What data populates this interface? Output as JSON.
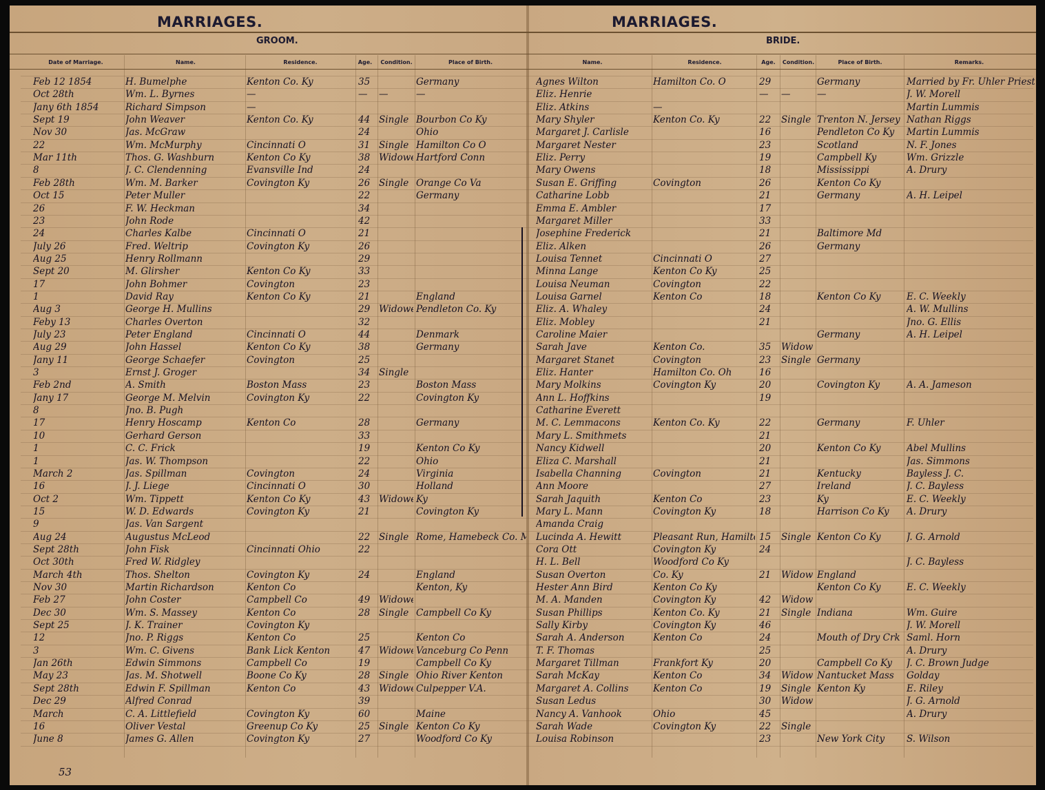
{
  "left_page": {
    "title": "MARRIAGES.",
    "section": "GROOM.",
    "columns": [
      "Date of Marriage.",
      "Name.",
      "Residence.",
      "Age.",
      "Condition.",
      "Place of Birth."
    ]
  },
  "right_page": {
    "title": "MARRIAGES.",
    "section": "BRIDE.",
    "columns": [
      "Name.",
      "Residence.",
      "Age.",
      "Condition.",
      "Place of Birth.",
      "Remarks."
    ]
  },
  "page_number": "53",
  "rows": [
    {
      "date": "Feb 12 1854",
      "groom": "H. Bumelphe",
      "g_res": "Kenton Co. Ky",
      "g_age": "35",
      "g_cond": "",
      "g_birth": "Germany",
      "bride": "Agnes Wilton",
      "b_res": "Hamilton Co. O",
      "b_age": "29",
      "b_cond": "",
      "b_birth": "Germany",
      "remarks": "Married by Fr. Uhler Priest"
    },
    {
      "date": "Oct 28th",
      "groom": "Wm. L. Byrnes",
      "g_res": "—",
      "g_age": "—",
      "g_cond": "—",
      "g_birth": "—",
      "bride": "Eliz. Henrie",
      "b_res": "",
      "b_age": "—",
      "b_cond": "—",
      "b_birth": "—",
      "remarks": "J. W. Morell"
    },
    {
      "date": "Jany 6th 1854",
      "groom": "Richard Simpson",
      "g_res": "—",
      "g_age": "",
      "g_cond": "",
      "g_birth": "",
      "bride": "Eliz. Atkins",
      "b_res": "—",
      "b_age": "",
      "b_cond": "",
      "b_birth": "",
      "remarks": "Martin Lummis"
    },
    {
      "date": "Sept 19",
      "groom": "John Weaver",
      "g_res": "Kenton Co. Ky",
      "g_age": "44",
      "g_cond": "Single",
      "g_birth": "Bourbon Co Ky",
      "bride": "Mary Shyler",
      "b_res": "Kenton Co. Ky",
      "b_age": "22",
      "b_cond": "Single",
      "b_birth": "Trenton N. Jersey",
      "remarks": "Nathan Riggs"
    },
    {
      "date": "Nov 30",
      "groom": "Jas. McGraw",
      "g_res": "",
      "g_age": "24",
      "g_cond": "",
      "g_birth": "Ohio",
      "bride": "Margaret J. Carlisle",
      "b_res": "",
      "b_age": "16",
      "b_cond": "",
      "b_birth": "Pendleton Co Ky",
      "remarks": "Martin Lummis"
    },
    {
      "date": "22",
      "groom": "Wm. McMurphy",
      "g_res": "Cincinnati O",
      "g_age": "31",
      "g_cond": "Single",
      "g_birth": "Hamilton Co O",
      "bride": "Margaret Nester",
      "b_res": "",
      "b_age": "23",
      "b_cond": "",
      "b_birth": "Scotland",
      "remarks": "N. F. Jones"
    },
    {
      "date": "Mar 11th",
      "groom": "Thos. G. Washburn",
      "g_res": "Kenton Co Ky",
      "g_age": "38",
      "g_cond": "Widower",
      "g_birth": "Hartford Conn",
      "bride": "Eliz. Perry",
      "b_res": "",
      "b_age": "19",
      "b_cond": "",
      "b_birth": "Campbell Ky",
      "remarks": "Wm. Grizzle"
    },
    {
      "date": "8",
      "groom": "J. C. Clendenning",
      "g_res": "Evansville Ind",
      "g_age": "24",
      "g_cond": "",
      "g_birth": "",
      "bride": "Mary Owens",
      "b_res": "",
      "b_age": "18",
      "b_cond": "",
      "b_birth": "Mississippi",
      "remarks": "A. Drury"
    },
    {
      "date": "Feb 28th",
      "groom": "Wm. M. Barker",
      "g_res": "Covington Ky",
      "g_age": "26",
      "g_cond": "Single",
      "g_birth": "Orange Co Va",
      "bride": "Susan E. Griffing",
      "b_res": "Covington",
      "b_age": "26",
      "b_cond": "",
      "b_birth": "Kenton Co Ky",
      "remarks": ""
    },
    {
      "date": "Oct 15",
      "groom": "Peter Muller",
      "g_res": "",
      "g_age": "22",
      "g_cond": "",
      "g_birth": "Germany",
      "bride": "Catharine Lobb",
      "b_res": "",
      "b_age": "21",
      "b_cond": "",
      "b_birth": "Germany",
      "remarks": "A. H. Leipel"
    },
    {
      "date": "26",
      "groom": "F. W. Heckman",
      "g_res": "",
      "g_age": "34",
      "g_cond": "",
      "g_birth": "",
      "bride": "Emma E. Ambler",
      "b_res": "",
      "b_age": "17",
      "b_cond": "",
      "b_birth": "",
      "remarks": ""
    },
    {
      "date": "23",
      "groom": "John Rode",
      "g_res": "",
      "g_age": "42",
      "g_cond": "",
      "g_birth": "",
      "bride": "Margaret Miller",
      "b_res": "",
      "b_age": "33",
      "b_cond": "",
      "b_birth": "",
      "remarks": ""
    },
    {
      "date": "24",
      "groom": "Charles Kalbe",
      "g_res": "Cincinnati O",
      "g_age": "21",
      "g_cond": "",
      "g_birth": "",
      "bride": "Josephine Frederick",
      "b_res": "",
      "b_age": "21",
      "b_cond": "",
      "b_birth": "Baltimore Md",
      "remarks": ""
    },
    {
      "date": "July 26",
      "groom": "Fred. Weltrip",
      "g_res": "Covington Ky",
      "g_age": "26",
      "g_cond": "",
      "g_birth": "",
      "bride": "Eliz. Alken",
      "b_res": "",
      "b_age": "26",
      "b_cond": "",
      "b_birth": "Germany",
      "remarks": ""
    },
    {
      "date": "Aug 25",
      "groom": "Henry Rollmann",
      "g_res": "",
      "g_age": "29",
      "g_cond": "",
      "g_birth": "",
      "bride": "Louisa Tennet",
      "b_res": "Cincinnati O",
      "b_age": "27",
      "b_cond": "",
      "b_birth": "",
      "remarks": ""
    },
    {
      "date": "Sept 20",
      "groom": "M. Glirsher",
      "g_res": "Kenton Co Ky",
      "g_age": "33",
      "g_cond": "",
      "g_birth": "",
      "bride": "Minna Lange",
      "b_res": "Kenton Co Ky",
      "b_age": "25",
      "b_cond": "",
      "b_birth": "",
      "remarks": ""
    },
    {
      "date": "17",
      "groom": "John Bohmer",
      "g_res": "Covington",
      "g_age": "23",
      "g_cond": "",
      "g_birth": "",
      "bride": "Louisa Neuman",
      "b_res": "Covington",
      "b_age": "22",
      "b_cond": "",
      "b_birth": "",
      "remarks": ""
    },
    {
      "date": "1",
      "groom": "David Ray",
      "g_res": "Kenton Co Ky",
      "g_age": "21",
      "g_cond": "",
      "g_birth": "England",
      "bride": "Louisa Garnel",
      "b_res": "Kenton Co",
      "b_age": "18",
      "b_cond": "",
      "b_birth": "Kenton Co Ky",
      "remarks": "E. C. Weekly"
    },
    {
      "date": "Aug 3",
      "groom": "George H. Mullins",
      "g_res": "",
      "g_age": "29",
      "g_cond": "Widower",
      "g_birth": "Pendleton Co. Ky",
      "bride": "Eliz. A. Whaley",
      "b_res": "",
      "b_age": "24",
      "b_cond": "",
      "b_birth": "",
      "remarks": "A. W. Mullins"
    },
    {
      "date": "Feby 13",
      "groom": "Charles Overton",
      "g_res": "",
      "g_age": "32",
      "g_cond": "",
      "g_birth": "",
      "bride": "Eliz. Mobley",
      "b_res": "",
      "b_age": "21",
      "b_cond": "",
      "b_birth": "",
      "remarks": "Jno. G. Ellis"
    },
    {
      "date": "July 23",
      "groom": "Peter England",
      "g_res": "Cincinnati O",
      "g_age": "44",
      "g_cond": "",
      "g_birth": "Denmark",
      "bride": "Caroline Maier",
      "b_res": "",
      "b_age": "",
      "b_cond": "",
      "b_birth": "Germany",
      "remarks": "A. H. Leipel"
    },
    {
      "date": "Aug 29",
      "groom": "John Hassel",
      "g_res": "Kenton Co Ky",
      "g_age": "38",
      "g_cond": "",
      "g_birth": "Germany",
      "bride": "Sarah Jave",
      "b_res": "Kenton Co.",
      "b_age": "35",
      "b_cond": "Widow",
      "b_birth": "",
      "remarks": ""
    },
    {
      "date": "Jany 11",
      "groom": "George Schaefer",
      "g_res": "Covington",
      "g_age": "25",
      "g_cond": "",
      "g_birth": "",
      "bride": "Margaret Stanet",
      "b_res": "Covington",
      "b_age": "23",
      "b_cond": "Single",
      "b_birth": "Germany",
      "remarks": ""
    },
    {
      "date": "3",
      "groom": "Ernst J. Groger",
      "g_res": "",
      "g_age": "34",
      "g_cond": "Single",
      "g_birth": "",
      "bride": "Eliz. Hanter",
      "b_res": "Hamilton Co. Oh",
      "b_age": "16",
      "b_cond": "",
      "b_birth": "",
      "remarks": ""
    },
    {
      "date": "Feb 2nd",
      "groom": "A. Smith",
      "g_res": "Boston Mass",
      "g_age": "23",
      "g_cond": "",
      "g_birth": "Boston Mass",
      "bride": "Mary Molkins",
      "b_res": "Covington Ky",
      "b_age": "20",
      "b_cond": "",
      "b_birth": "Covington Ky",
      "remarks": "A. A. Jameson"
    },
    {
      "date": "Jany 17",
      "groom": "George M. Melvin",
      "g_res": "Covington Ky",
      "g_age": "22",
      "g_cond": "",
      "g_birth": "Covington Ky",
      "bride": "Ann L. Hoffkins",
      "b_res": "",
      "b_age": "19",
      "b_cond": "",
      "b_birth": "",
      "remarks": ""
    },
    {
      "date": "8",
      "groom": "Jno. B. Pugh",
      "g_res": "",
      "g_age": "",
      "g_cond": "",
      "g_birth": "",
      "bride": "Catharine Everett",
      "b_res": "",
      "b_age": "",
      "b_cond": "",
      "b_birth": "",
      "remarks": ""
    },
    {
      "date": "17",
      "groom": "Henry Hoscamp",
      "g_res": "Kenton Co",
      "g_age": "28",
      "g_cond": "",
      "g_birth": "Germany",
      "bride": "M. C. Lemmacons",
      "b_res": "Kenton Co. Ky",
      "b_age": "22",
      "b_cond": "",
      "b_birth": "Germany",
      "remarks": "F. Uhler"
    },
    {
      "date": "10",
      "groom": "Gerhard Gerson",
      "g_res": "",
      "g_age": "33",
      "g_cond": "",
      "g_birth": "",
      "bride": "Mary L. Smithmets",
      "b_res": "",
      "b_age": "21",
      "b_cond": "",
      "b_birth": "",
      "remarks": ""
    },
    {
      "date": "1",
      "groom": "C. C. Frick",
      "g_res": "",
      "g_age": "19",
      "g_cond": "",
      "g_birth": "Kenton Co Ky",
      "bride": "Nancy Kidwell",
      "b_res": "",
      "b_age": "20",
      "b_cond": "",
      "b_birth": "Kenton Co Ky",
      "remarks": "Abel Mullins"
    },
    {
      "date": "1",
      "groom": "Jas. W. Thompson",
      "g_res": "",
      "g_age": "22",
      "g_cond": "",
      "g_birth": "Ohio",
      "bride": "Eliza C. Marshall",
      "b_res": "",
      "b_age": "21",
      "b_cond": "",
      "b_birth": "",
      "remarks": "Jas. Simmons"
    },
    {
      "date": "March 2",
      "groom": "Jas. Spillman",
      "g_res": "Covington",
      "g_age": "24",
      "g_cond": "",
      "g_birth": "Virginia",
      "bride": "Isabella Channing",
      "b_res": "Covington",
      "b_age": "21",
      "b_cond": "",
      "b_birth": "Kentucky",
      "remarks": "Bayless J. C."
    },
    {
      "date": "16",
      "groom": "J. J. Liege",
      "g_res": "Cincinnati O",
      "g_age": "30",
      "g_cond": "",
      "g_birth": "Holland",
      "bride": "Ann Moore",
      "b_res": "",
      "b_age": "27",
      "b_cond": "",
      "b_birth": "Ireland",
      "remarks": "J. C. Bayless"
    },
    {
      "date": "Oct 2",
      "groom": "Wm. Tippett",
      "g_res": "Kenton Co Ky",
      "g_age": "43",
      "g_cond": "Widower",
      "g_birth": "Ky",
      "bride": "Sarah Jaquith",
      "b_res": "Kenton Co",
      "b_age": "23",
      "b_cond": "",
      "b_birth": "Ky",
      "remarks": "E. C. Weekly"
    },
    {
      "date": "15",
      "groom": "W. D. Edwards",
      "g_res": "Covington Ky",
      "g_age": "21",
      "g_cond": "",
      "g_birth": "Covington Ky",
      "bride": "Mary L. Mann",
      "b_res": "Covington Ky",
      "b_age": "18",
      "b_cond": "",
      "b_birth": "Harrison Co Ky",
      "remarks": "A. Drury"
    },
    {
      "date": "9",
      "groom": "Jas. Van Sargent",
      "g_res": "",
      "g_age": "",
      "g_cond": "",
      "g_birth": "",
      "bride": "Amanda Craig",
      "b_res": "",
      "b_age": "",
      "b_cond": "",
      "b_birth": "",
      "remarks": ""
    },
    {
      "date": "Aug 24",
      "groom": "Augustus McLeod",
      "g_res": "",
      "g_age": "22",
      "g_cond": "Single",
      "g_birth": "Rome, Hamebeck Co. Mass",
      "bride": "Lucinda A. Hewitt",
      "b_res": "Pleasant Run, Hamilton Co",
      "b_age": "15",
      "b_cond": "Single",
      "b_birth": "Kenton Co Ky",
      "remarks": "J. G. Arnold"
    },
    {
      "date": "Sept 28th",
      "groom": "John Fisk",
      "g_res": "Cincinnati Ohio",
      "g_age": "22",
      "g_cond": "",
      "g_birth": "",
      "bride": "Cora Ott",
      "b_res": "Covington Ky",
      "b_age": "24",
      "b_cond": "",
      "b_birth": "",
      "remarks": ""
    },
    {
      "date": "Oct 30th",
      "groom": "Fred W. Ridgley",
      "g_res": "",
      "g_age": "",
      "g_cond": "",
      "g_birth": "",
      "bride": "H. L. Bell",
      "b_res": "Woodford Co Ky",
      "b_age": "",
      "b_cond": "",
      "b_birth": "",
      "remarks": "J. C. Bayless"
    },
    {
      "date": "March 4th",
      "groom": "Thos. Shelton",
      "g_res": "Covington Ky",
      "g_age": "24",
      "g_cond": "",
      "g_birth": "England",
      "bride": "Susan Overton",
      "b_res": "Co. Ky",
      "b_age": "21",
      "b_cond": "Widow",
      "b_birth": "England",
      "remarks": ""
    },
    {
      "date": "Nov 30",
      "groom": "Martin Richardson",
      "g_res": "Kenton Co",
      "g_age": "",
      "g_cond": "",
      "g_birth": "Kenton, Ky",
      "bride": "Hester Ann Bird",
      "b_res": "Kenton Co Ky",
      "b_age": "",
      "b_cond": "",
      "b_birth": "Kenton Co Ky",
      "remarks": "E. C. Weekly"
    },
    {
      "date": "Feb 27",
      "groom": "John Coster",
      "g_res": "Campbell Co",
      "g_age": "49",
      "g_cond": "Widower",
      "g_birth": "",
      "bride": "M. A. Manden",
      "b_res": "Covington Ky",
      "b_age": "42",
      "b_cond": "Widow",
      "b_birth": "",
      "remarks": ""
    },
    {
      "date": "Dec 30",
      "groom": "Wm. S. Massey",
      "g_res": "Kenton Co",
      "g_age": "28",
      "g_cond": "Single",
      "g_birth": "Campbell Co Ky",
      "bride": "Susan Phillips",
      "b_res": "Kenton Co. Ky",
      "b_age": "21",
      "b_cond": "Single",
      "b_birth": "Indiana",
      "remarks": "Wm. Guire"
    },
    {
      "date": "Sept 25",
      "groom": "J. K. Trainer",
      "g_res": "Covington Ky",
      "g_age": "",
      "g_cond": "",
      "g_birth": "",
      "bride": "Sally Kirby",
      "b_res": "Covington Ky",
      "b_age": "46",
      "b_cond": "",
      "b_birth": "",
      "remarks": "J. W. Morell"
    },
    {
      "date": "12",
      "groom": "Jno. P. Riggs",
      "g_res": "Kenton Co",
      "g_age": "25",
      "g_cond": "",
      "g_birth": "Kenton Co",
      "bride": "Sarah A. Anderson",
      "b_res": "Kenton Co",
      "b_age": "24",
      "b_cond": "",
      "b_birth": "Mouth of Dry Crk",
      "remarks": "Saml. Horn"
    },
    {
      "date": "3",
      "groom": "Wm. C. Givens",
      "g_res": "Bank Lick Kenton",
      "g_age": "47",
      "g_cond": "Widower",
      "g_birth": "Vanceburg Co Penn",
      "bride": "T. F. Thomas",
      "b_res": "",
      "b_age": "25",
      "b_cond": "",
      "b_birth": "",
      "remarks": "A. Drury"
    },
    {
      "date": "Jan 26th",
      "groom": "Edwin Simmons",
      "g_res": "Campbell Co",
      "g_age": "19",
      "g_cond": "",
      "g_birth": "Campbell Co Ky",
      "bride": "Margaret Tillman",
      "b_res": "Frankfort Ky",
      "b_age": "20",
      "b_cond": "",
      "b_birth": "Campbell Co Ky",
      "remarks": "J. C. Brown Judge"
    },
    {
      "date": "May 23",
      "groom": "Jas. M. Shotwell",
      "g_res": "Boone Co Ky",
      "g_age": "28",
      "g_cond": "Single",
      "g_birth": "Ohio River Kenton",
      "bride": "Sarah McKay",
      "b_res": "Kenton Co",
      "b_age": "34",
      "b_cond": "Widow",
      "b_birth": "Nantucket Mass",
      "remarks": "Golday"
    },
    {
      "date": "Sept 28th",
      "groom": "Edwin F. Spillman",
      "g_res": "Kenton Co",
      "g_age": "43",
      "g_cond": "Widower",
      "g_birth": "Culpepper V.A.",
      "bride": "Margaret A. Collins",
      "b_res": "Kenton Co",
      "b_age": "19",
      "b_cond": "Single",
      "b_birth": "Kenton Ky",
      "remarks": "E. Riley"
    },
    {
      "date": "Dec 29",
      "groom": "Alfred Conrad",
      "g_res": "",
      "g_age": "39",
      "g_cond": "",
      "g_birth": "",
      "bride": "Susan Ledus",
      "b_res": "",
      "b_age": "30",
      "b_cond": "Widow",
      "b_birth": "",
      "remarks": "J. G. Arnold"
    },
    {
      "date": "March",
      "groom": "C. A. Littlefield",
      "g_res": "Covington Ky",
      "g_age": "60",
      "g_cond": "",
      "g_birth": "Maine",
      "bride": "Nancy A. Vanhook",
      "b_res": "Ohio",
      "b_age": "45",
      "b_cond": "",
      "b_birth": "",
      "remarks": "A. Drury"
    },
    {
      "date": "16",
      "groom": "Oliver Vestal",
      "g_res": "Greenup Co Ky",
      "g_age": "25",
      "g_cond": "Single",
      "g_birth": "Kenton Co Ky",
      "bride": "Sarah Wade",
      "b_res": "Covington Ky",
      "b_age": "22",
      "b_cond": "Single",
      "b_birth": "",
      "remarks": ""
    },
    {
      "date": "June 8",
      "groom": "James G. Allen",
      "g_res": "Covington Ky",
      "g_age": "27",
      "g_cond": "",
      "g_birth": "Woodford Co Ky",
      "bride": "Louisa Robinson",
      "b_res": "",
      "b_age": "23",
      "b_cond": "",
      "b_birth": "New York City",
      "remarks": "S. Wilson"
    }
  ]
}
